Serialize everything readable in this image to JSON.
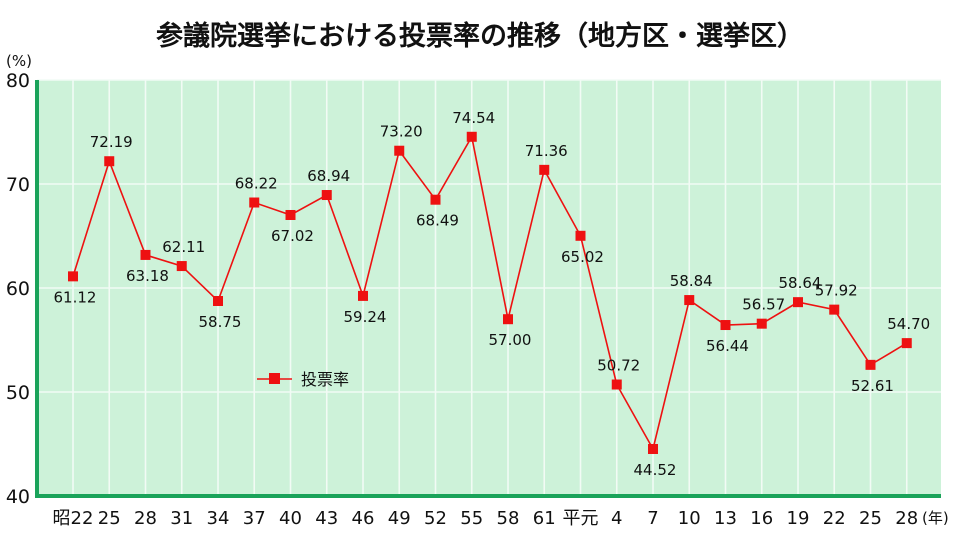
{
  "chart_data": {
    "type": "line",
    "title": "参議院選挙における投票率の推移（地方区・選挙区）",
    "ylabel": "(%)",
    "xlabel": "(年)",
    "ylim": [
      40,
      80
    ],
    "yticks": [
      40,
      50,
      60,
      70,
      80
    ],
    "grid": true,
    "legend_position": "left-lower",
    "categories": [
      "昭22",
      "25",
      "28",
      "31",
      "34",
      "37",
      "40",
      "43",
      "46",
      "49",
      "52",
      "55",
      "58",
      "61",
      "平元",
      "4",
      "7",
      "10",
      "13",
      "16",
      "19",
      "22",
      "25",
      "28"
    ],
    "series": [
      {
        "name": "投票率",
        "color": "#ee1111",
        "values": [
          61.12,
          72.19,
          63.18,
          62.11,
          58.75,
          68.22,
          67.02,
          68.94,
          59.24,
          73.2,
          68.49,
          74.54,
          57.0,
          71.36,
          65.02,
          50.72,
          44.52,
          58.84,
          56.44,
          56.57,
          58.64,
          57.92,
          52.61,
          54.7
        ],
        "labels": [
          "61.12",
          "72.19",
          "63.18",
          "62.11",
          "58.75",
          "68.22",
          "67.02",
          "68.94",
          "59.24",
          "73.20",
          "68.49",
          "74.54",
          "57.00",
          "71.36",
          "65.02",
          "50.72",
          "44.52",
          "58.84",
          "56.44",
          "56.57",
          "58.64",
          "57.92",
          "52.61",
          "54.70"
        ],
        "label_side": [
          "below",
          "above",
          "below",
          "above",
          "below",
          "above",
          "below",
          "above",
          "below",
          "above",
          "below",
          "above",
          "below",
          "above",
          "below",
          "above",
          "below",
          "above",
          "below",
          "above",
          "above",
          "above",
          "below",
          "above"
        ]
      }
    ],
    "colors": {
      "plot_background": "#cdf2d9",
      "gridline": "#f2fbf5",
      "axis": "#1aa35a"
    }
  }
}
